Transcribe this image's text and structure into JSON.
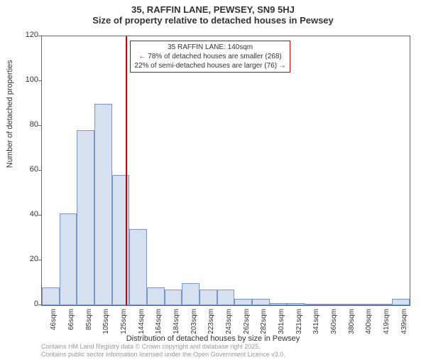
{
  "title_main": "35, RAFFIN LANE, PEWSEY, SN9 5HJ",
  "title_sub": "Size of property relative to detached houses in Pewsey",
  "y_axis_label": "Number of detached properties",
  "x_axis_label": "Distribution of detached houses by size in Pewsey",
  "chart": {
    "type": "histogram",
    "ylim": [
      0,
      120
    ],
    "ytick_step": 20,
    "bar_color": "#d6e0f0",
    "bar_border_color": "#7a94c4",
    "border_color": "#666666",
    "background_color": "#ffffff",
    "x_categories": [
      "46sqm",
      "66sqm",
      "85sqm",
      "105sqm",
      "125sqm",
      "144sqm",
      "164sqm",
      "184sqm",
      "203sqm",
      "223sqm",
      "243sqm",
      "262sqm",
      "282sqm",
      "301sqm",
      "321sqm",
      "341sqm",
      "360sqm",
      "380sqm",
      "400sqm",
      "419sqm",
      "439sqm"
    ],
    "values": [
      8,
      41,
      78,
      90,
      58,
      34,
      8,
      7,
      10,
      7,
      7,
      3,
      3,
      1,
      1,
      0,
      0,
      0,
      0,
      0,
      3
    ],
    "font_size_tick": 11,
    "font_size_axis_label": 11,
    "font_size_title": 13
  },
  "marker": {
    "color": "#cc0000",
    "position_category_index": 4.8,
    "annotation_lines": [
      "35 RAFFIN LANE: 140sqm",
      "← 78% of detached houses are smaller (268)",
      "22% of semi-detached houses are larger (76) →"
    ],
    "annotation_border_color": "#cc0000",
    "annotation_bg": "#ffffff",
    "annotation_font_size": 10
  },
  "license_lines": [
    "Contains HM Land Registry data © Crown copyright and database right 2025.",
    "Contains public sector information licensed under the Open Government Licence v3.0."
  ],
  "license_color": "#999999"
}
